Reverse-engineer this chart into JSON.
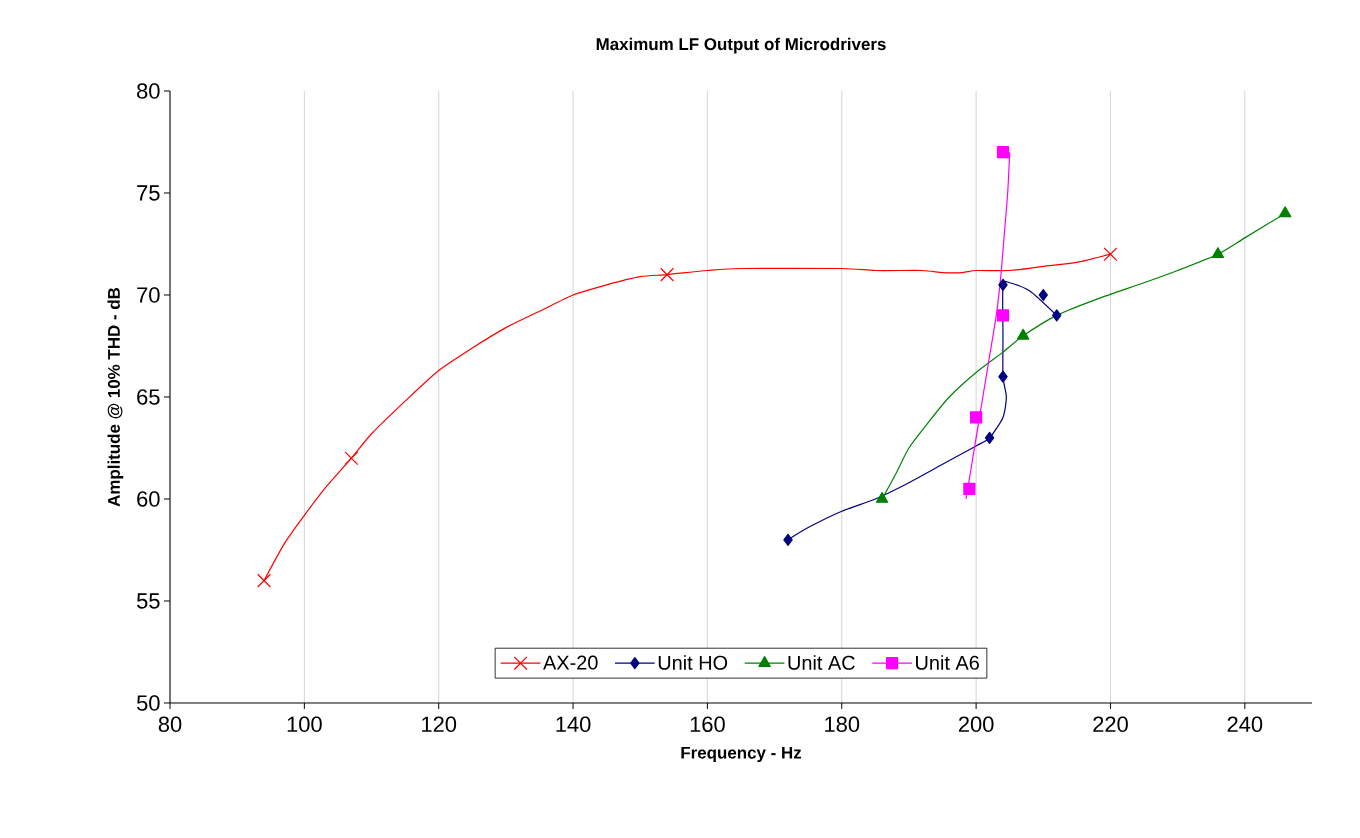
{
  "chart_data": {
    "type": "scatter",
    "title": "Maximum LF Output of Microdrivers",
    "xlabel": "Frequency - Hz",
    "ylabel": "Amplitude @ 10% THD - dB",
    "xlim": [
      80,
      250
    ],
    "ylim": [
      50,
      80
    ],
    "xticks": [
      80,
      100,
      120,
      140,
      160,
      180,
      200,
      220,
      240
    ],
    "yticks": [
      50,
      55,
      60,
      65,
      70,
      75,
      80
    ],
    "grid": "x",
    "legend": "bottom",
    "series": [
      {
        "type": "line",
        "color": "#ff0000",
        "x": [
          94,
          97,
          100,
          103,
          107,
          110,
          115,
          120,
          125,
          130,
          135,
          140,
          145,
          150,
          154,
          160,
          165,
          180,
          185,
          192,
          195,
          198,
          200,
          205,
          210,
          215,
          220
        ],
        "values": [
          56,
          57.8,
          59.2,
          60.5,
          62,
          63.2,
          64.8,
          66.3,
          67.4,
          68.4,
          69.2,
          70,
          70.5,
          70.9,
          71,
          71.2,
          71.3,
          71.3,
          71.2,
          71.2,
          71.1,
          71.1,
          71.2,
          71.2,
          71.4,
          71.6,
          72
        ]
      },
      {
        "type": "line",
        "color": "#000080",
        "x": [
          172,
          175,
          180,
          185,
          190,
          195,
          200,
          202,
          204,
          204.5,
          204,
          204,
          204,
          205,
          208,
          212
        ],
        "values": [
          58,
          58.6,
          59.4,
          60,
          60.8,
          61.7,
          62.6,
          63,
          64,
          65,
          66,
          68,
          70.5,
          70.6,
          70.2,
          69
        ]
      },
      {
        "type": "line",
        "color": "#008000",
        "x": [
          186,
          188,
          190,
          193,
          196,
          200,
          204,
          207,
          212,
          218,
          225,
          230,
          236,
          240,
          246
        ],
        "values": [
          60,
          61.2,
          62.5,
          63.8,
          65,
          66.2,
          67.2,
          68,
          69,
          69.8,
          70.6,
          71.2,
          72,
          72.8,
          74
        ]
      },
      {
        "type": "line",
        "color": "#ff00ff",
        "x": [
          198.5,
          200,
          201,
          202,
          203,
          203.7,
          204.2,
          204.7,
          205
        ],
        "values": [
          60,
          63,
          65,
          67,
          69,
          71,
          73,
          75,
          77
        ]
      },
      {
        "name": "AX-20",
        "color": "#ff0000",
        "marker": "cross",
        "x": [
          94,
          107,
          154,
          220
        ],
        "values": [
          56,
          62,
          71,
          72
        ]
      },
      {
        "name": "Unit HO",
        "color": "#000080",
        "marker": "diamond",
        "x": [
          172,
          202,
          204,
          204,
          210,
          212
        ],
        "values": [
          58,
          63,
          66,
          70.5,
          70,
          69
        ]
      },
      {
        "name": "Unit AC",
        "color": "#008000",
        "marker": "triangle",
        "x": [
          186,
          207,
          236,
          246
        ],
        "values": [
          60,
          68,
          72,
          74
        ]
      },
      {
        "name": "Unit A6",
        "color": "#ff00ff",
        "marker": "square",
        "x": [
          199,
          200,
          204,
          204
        ],
        "values": [
          60.5,
          64,
          69,
          77
        ]
      }
    ]
  }
}
